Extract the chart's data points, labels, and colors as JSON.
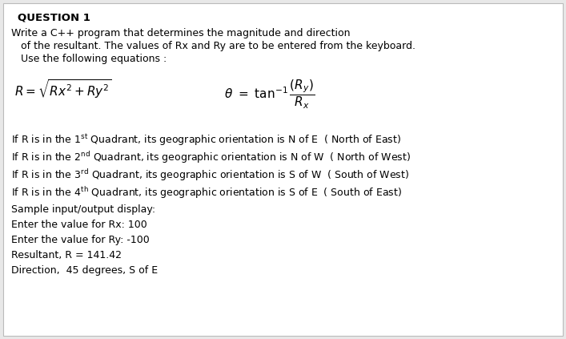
{
  "bg_color": "#e8e8e8",
  "panel_color": "#ffffff",
  "title": "QUESTION 1",
  "title_fontsize": 9.5,
  "body_fontsize": 9.0,
  "eq_fontsize": 11.0,
  "lines": [
    "Write a C++ program that determines the magnitude and direction",
    "   of the resultant. The values of Rx and Ry are to be entered from the keyboard.",
    "   Use the following equations :"
  ],
  "superscripts": [
    "st",
    "nd",
    "rd",
    "th"
  ],
  "numbers": [
    "1",
    "2",
    "3",
    "4"
  ],
  "quad_suffixes": [
    " Quadrant, its geographic orientation is N of E  ( North of East)",
    " Quadrant, its geographic orientation is N of W  ( North of West)",
    " Quadrant, its geographic orientation is S of W  ( South of West)",
    " Quadrant, its geographic orientation is S of E  ( South of East)"
  ],
  "sample_lines": [
    "Sample input/output display:",
    "Enter the value for Rx: 100",
    "Enter the value for Ry: -100",
    "Resultant, R = 141.42",
    "Direction,  45 degrees, S of E"
  ]
}
